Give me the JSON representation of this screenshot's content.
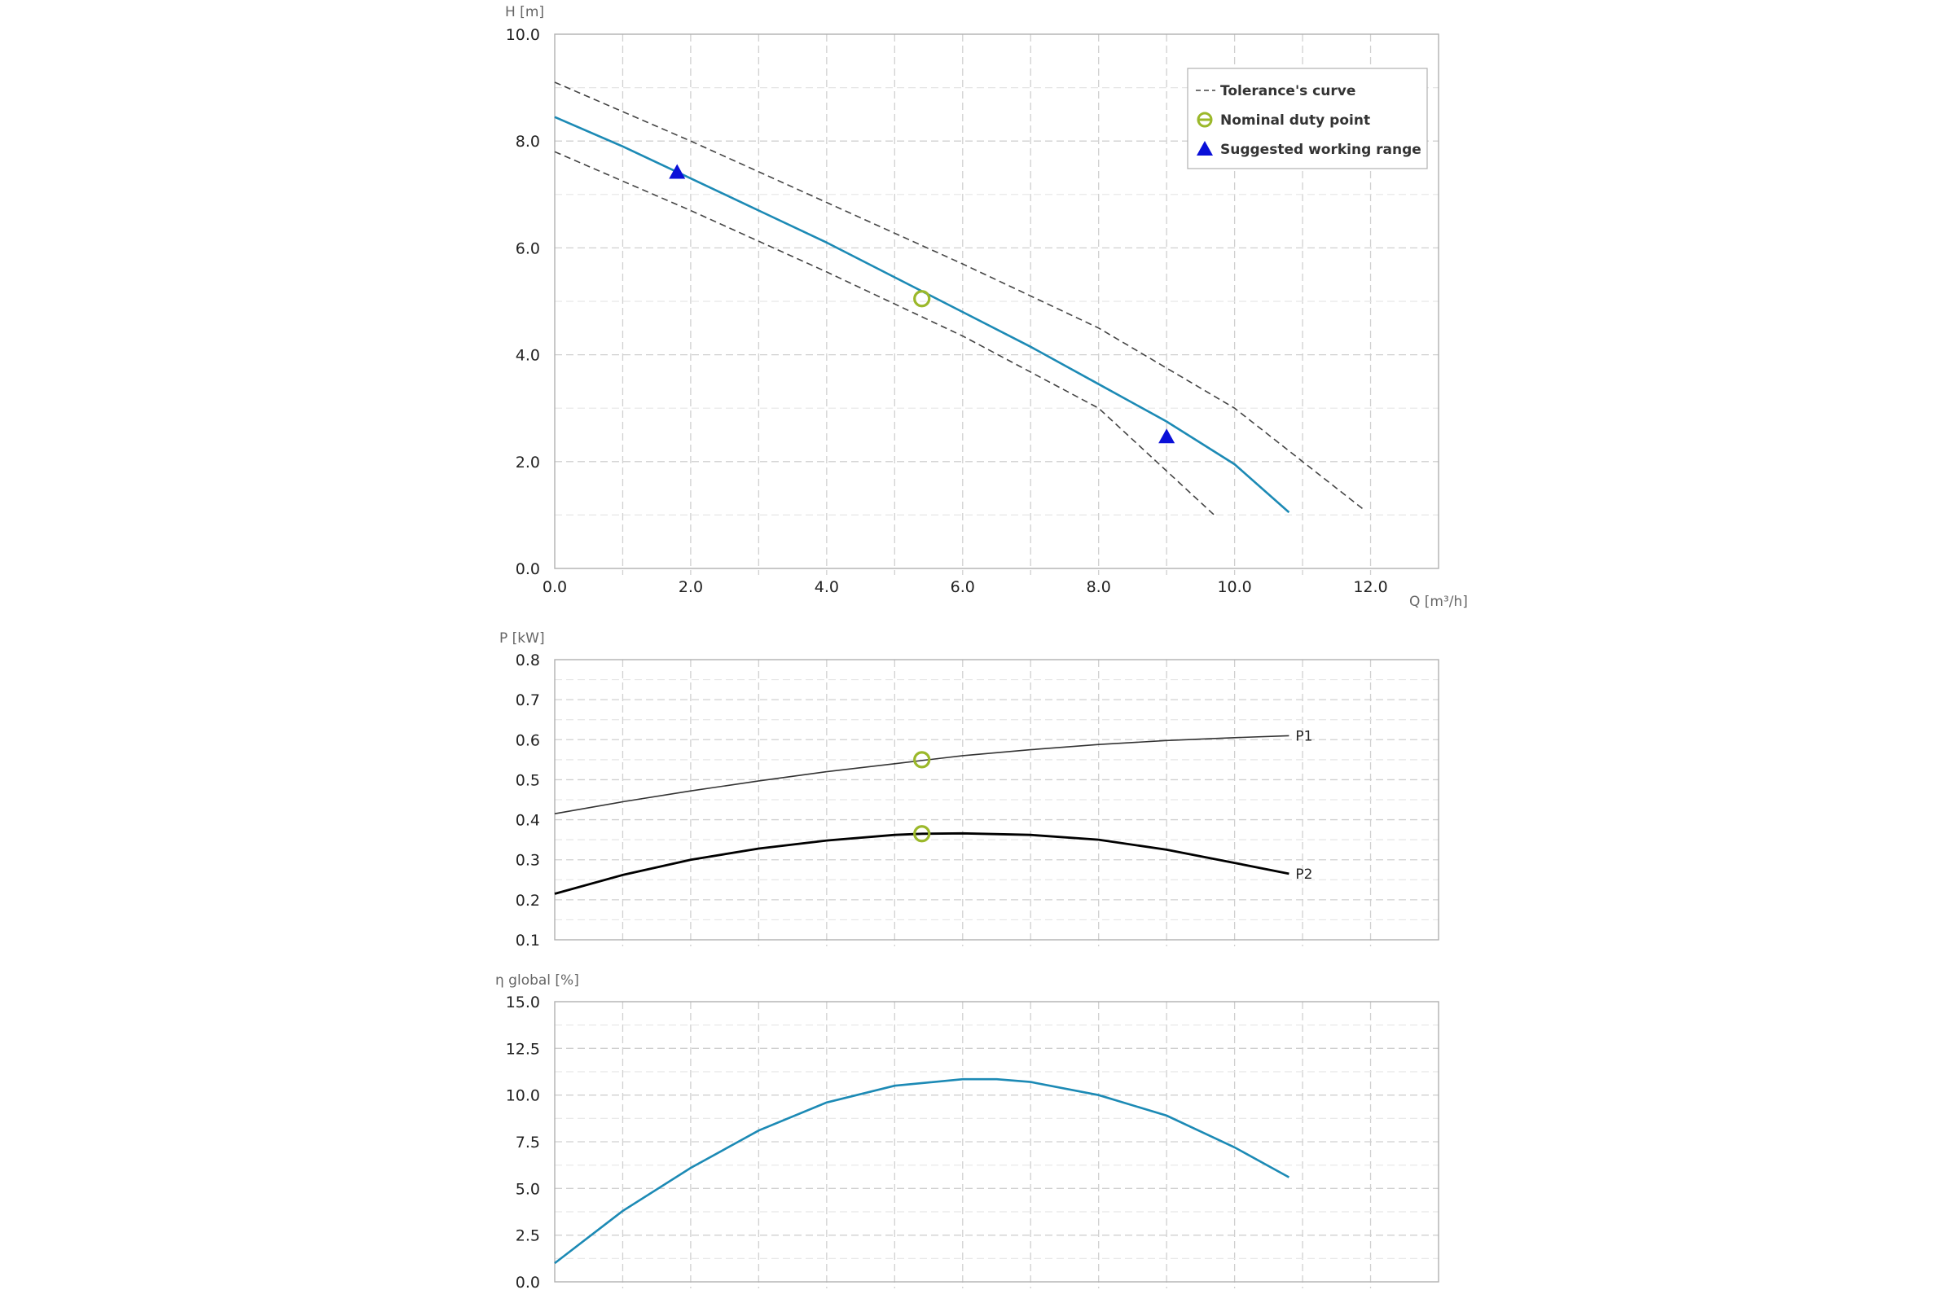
{
  "colors": {
    "head_curve": "#1c8ab5",
    "tolerance": "#444444",
    "duty_point": "#9bb82a",
    "working_range": "#0a10d8",
    "p1": "#333333",
    "p2": "#000000",
    "efficiency": "#1c8ab5",
    "grid": "#d0d0d0",
    "frame": "#b0b0b0"
  },
  "chart_data": [
    {
      "id": "head",
      "type": "line",
      "xlabel": "Q [m³/h]",
      "ylabel": "H [m]",
      "xlim": [
        0,
        13
      ],
      "ylim": [
        0,
        10
      ],
      "x_ticks": [
        "0.0",
        "2.0",
        "4.0",
        "6.0",
        "8.0",
        "10.0",
        "12.0"
      ],
      "y_ticks": [
        "0.0",
        "2.0",
        "4.0",
        "6.0",
        "8.0",
        "10.0"
      ],
      "grid": true,
      "legend": {
        "placement": "top-right",
        "entries": [
          {
            "label": "Tolerance's curve",
            "symbol": "dashed-line"
          },
          {
            "label": "Nominal duty point",
            "symbol": "circle"
          },
          {
            "label": "Suggested working range",
            "symbol": "triangle"
          }
        ]
      },
      "series": [
        {
          "role": "head",
          "x": [
            0,
            1,
            2,
            3,
            4,
            5,
            6,
            7,
            8,
            9,
            10,
            10.8
          ],
          "y": [
            8.45,
            7.9,
            7.3,
            6.7,
            6.1,
            5.45,
            4.8,
            4.15,
            3.45,
            2.75,
            1.95,
            1.05
          ]
        },
        {
          "role": "tolerance-upper",
          "x": [
            0,
            2,
            4,
            6,
            8,
            10,
            11.9
          ],
          "y": [
            9.1,
            8.0,
            6.85,
            5.7,
            4.5,
            3.0,
            1.1
          ]
        },
        {
          "role": "tolerance-lower",
          "x": [
            0,
            2,
            4,
            6,
            8,
            9.7
          ],
          "y": [
            7.8,
            6.7,
            5.55,
            4.35,
            3.0,
            1.0
          ]
        }
      ],
      "duty_point": {
        "x": 5.4,
        "y": 5.05
      },
      "working_range": [
        {
          "x": 1.8,
          "y": 7.4
        },
        {
          "x": 9.0,
          "y": 2.45
        }
      ]
    },
    {
      "id": "power",
      "type": "line",
      "xlabel": "",
      "ylabel": "P [kW]",
      "xlim": [
        0,
        13
      ],
      "ylim": [
        0.1,
        0.8
      ],
      "x_ticks": [],
      "y_ticks": [
        "0.1",
        "0.2",
        "0.3",
        "0.4",
        "0.5",
        "0.6",
        "0.7",
        "0.8"
      ],
      "grid": true,
      "series": [
        {
          "name": "P1",
          "x": [
            0,
            1,
            2,
            3,
            4,
            5,
            6,
            7,
            8,
            9,
            10,
            10.8
          ],
          "y": [
            0.415,
            0.445,
            0.472,
            0.497,
            0.52,
            0.54,
            0.56,
            0.575,
            0.588,
            0.598,
            0.605,
            0.61
          ]
        },
        {
          "name": "P2",
          "x": [
            0,
            1,
            2,
            3,
            4,
            5,
            5.4,
            6,
            7,
            8,
            9,
            10,
            10.8
          ],
          "y": [
            0.215,
            0.262,
            0.3,
            0.328,
            0.348,
            0.362,
            0.365,
            0.366,
            0.362,
            0.35,
            0.325,
            0.292,
            0.265
          ]
        }
      ],
      "duty_points": [
        {
          "x": 5.4,
          "y": 0.55
        },
        {
          "x": 5.4,
          "y": 0.365
        }
      ]
    },
    {
      "id": "efficiency",
      "type": "line",
      "xlabel": "",
      "ylabel": "η global [%]",
      "xlim": [
        0,
        13
      ],
      "ylim": [
        0,
        15
      ],
      "x_ticks": [],
      "y_ticks": [
        "0.0",
        "2.5",
        "5.0",
        "7.5",
        "10.0",
        "12.5",
        "15.0"
      ],
      "grid": true,
      "series": [
        {
          "role": "efficiency",
          "x": [
            0,
            1,
            2,
            3,
            4,
            5,
            6,
            6.5,
            7,
            8,
            9,
            10,
            10.8
          ],
          "y": [
            1.0,
            3.8,
            6.1,
            8.1,
            9.6,
            10.5,
            10.85,
            10.85,
            10.7,
            10.0,
            8.9,
            7.2,
            5.6
          ]
        }
      ]
    }
  ]
}
